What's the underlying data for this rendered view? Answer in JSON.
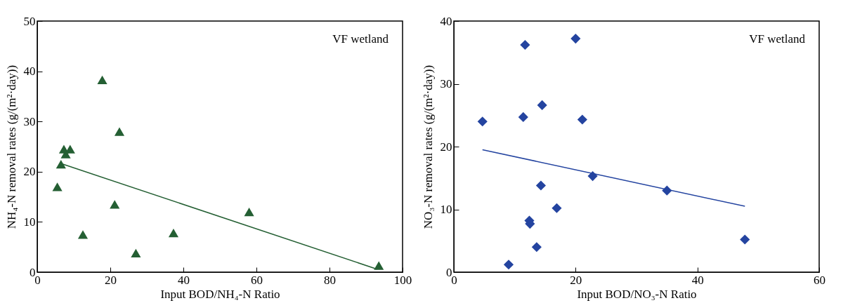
{
  "chart_data": [
    {
      "type": "scatter",
      "xlabel": "Input BOD/NH₄-N Ratio",
      "ylabel": "NH₄-N removal rates (g/(m²·day))",
      "annotations": [
        "VF wetland"
      ],
      "xlim": [
        0,
        100
      ],
      "xticks": [
        0,
        20,
        40,
        60,
        80,
        100
      ],
      "ylim": [
        0,
        50
      ],
      "yticks": [
        0,
        10,
        20,
        30,
        40,
        50
      ],
      "grid": false,
      "series": [
        {
          "marker": "triangle",
          "color": "#245f33",
          "x": [
            5.5,
            6.5,
            7.3,
            7.8,
            9,
            12.5,
            17.8,
            21.2,
            22.5,
            27,
            37.3,
            58,
            93.5
          ],
          "values": [
            17,
            21.5,
            24.5,
            23.5,
            24.5,
            7.5,
            38.3,
            13.5,
            28,
            3.8,
            7.8,
            12,
            1.3
          ]
        },
        {
          "type": "line",
          "marker": "none",
          "line_style": "solid",
          "color": "#245f33",
          "x": [
            7,
            93
          ],
          "values": [
            21.5,
            0.6
          ]
        }
      ]
    },
    {
      "type": "scatter",
      "xlabel": "Input BOD/NO₃-N Ratio",
      "ylabel": "NO₃-N removal rates (g/(m²·day))",
      "annotations": [
        "VF wetland"
      ],
      "xlim": [
        0,
        60
      ],
      "xticks": [
        0,
        20,
        40,
        60
      ],
      "ylim": [
        0,
        40
      ],
      "yticks": [
        0,
        10,
        20,
        30,
        40
      ],
      "grid": false,
      "series": [
        {
          "marker": "diamond",
          "color": "#2444a0",
          "x": [
            4.7,
            9,
            11.4,
            11.7,
            12.4,
            12.5,
            13.6,
            14.3,
            14.5,
            16.9,
            20,
            21.1,
            22.8,
            35,
            47.8
          ],
          "values": [
            24,
            1.2,
            24.7,
            36.2,
            8.2,
            7.7,
            4,
            13.8,
            26.6,
            10.2,
            37.2,
            24.3,
            15.3,
            13,
            5.2
          ]
        },
        {
          "type": "line",
          "marker": "none",
          "line_style": "solid",
          "color": "#2444a0",
          "x": [
            4.7,
            47.8
          ],
          "values": [
            19.5,
            10.5
          ]
        }
      ]
    }
  ]
}
